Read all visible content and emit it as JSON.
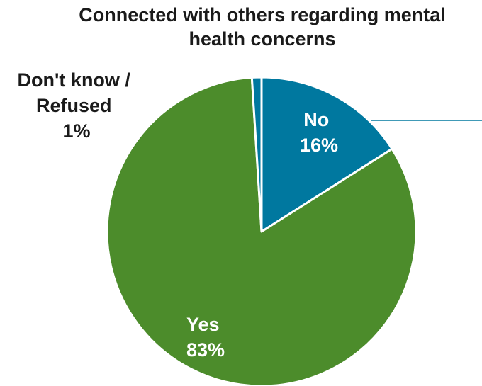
{
  "title_lines": [
    "Connected with others regarding mental",
    "health concerns"
  ],
  "chart_data": {
    "type": "pie",
    "title": "Connected with others regarding mental health concerns",
    "slices": [
      {
        "label": "No",
        "value": 16,
        "value_label": "16%",
        "color": "#00789f"
      },
      {
        "label": "Yes",
        "value": 83,
        "value_label": "83%",
        "color": "#4c8c2b"
      },
      {
        "label": "Don't know / Refused",
        "value": 1,
        "value_label": "1%",
        "color": "#00789f"
      }
    ],
    "label_lines": {
      "no": [
        "No",
        "16%"
      ],
      "yes": [
        "Yes",
        "83%"
      ],
      "dk": [
        "Don't know /",
        "Refused",
        "1%"
      ]
    }
  }
}
